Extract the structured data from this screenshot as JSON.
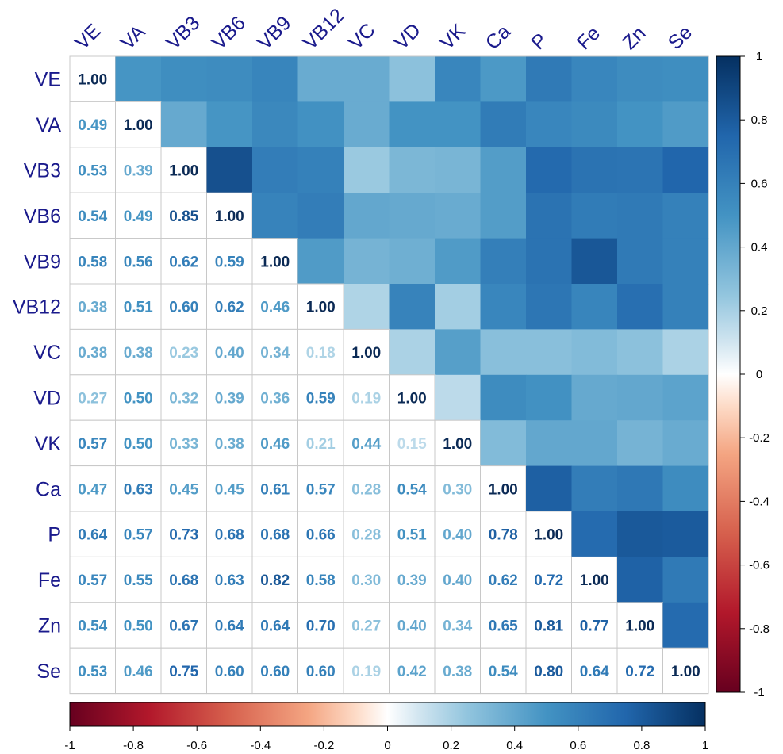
{
  "chart_data": {
    "type": "heatmap",
    "variables": [
      "VE",
      "VA",
      "VB3",
      "VB6",
      "VB9",
      "VB12",
      "VC",
      "VD",
      "VK",
      "Ca",
      "P",
      "Fe",
      "Zn",
      "Se"
    ],
    "matrix": [
      [
        1.0,
        0.49,
        0.53,
        0.54,
        0.58,
        0.38,
        0.38,
        0.27,
        0.57,
        0.47,
        0.64,
        0.57,
        0.54,
        0.53
      ],
      [
        0.49,
        1.0,
        0.39,
        0.49,
        0.56,
        0.51,
        0.38,
        0.5,
        0.5,
        0.63,
        0.57,
        0.55,
        0.5,
        0.46
      ],
      [
        0.53,
        0.39,
        1.0,
        0.85,
        0.62,
        0.6,
        0.23,
        0.32,
        0.33,
        0.45,
        0.73,
        0.68,
        0.67,
        0.75
      ],
      [
        0.54,
        0.49,
        0.85,
        1.0,
        0.59,
        0.62,
        0.4,
        0.39,
        0.38,
        0.45,
        0.68,
        0.63,
        0.64,
        0.6
      ],
      [
        0.58,
        0.56,
        0.62,
        0.59,
        1.0,
        0.46,
        0.34,
        0.36,
        0.46,
        0.61,
        0.68,
        0.82,
        0.64,
        0.6
      ],
      [
        0.38,
        0.51,
        0.6,
        0.62,
        0.46,
        1.0,
        0.18,
        0.59,
        0.21,
        0.57,
        0.66,
        0.58,
        0.7,
        0.6
      ],
      [
        0.38,
        0.38,
        0.23,
        0.4,
        0.34,
        0.18,
        1.0,
        0.19,
        0.44,
        0.28,
        0.28,
        0.3,
        0.27,
        0.19
      ],
      [
        0.27,
        0.5,
        0.32,
        0.39,
        0.36,
        0.59,
        0.19,
        1.0,
        0.15,
        0.54,
        0.51,
        0.39,
        0.4,
        0.42
      ],
      [
        0.57,
        0.5,
        0.33,
        0.38,
        0.46,
        0.21,
        0.44,
        0.15,
        1.0,
        0.3,
        0.4,
        0.4,
        0.34,
        0.38
      ],
      [
        0.47,
        0.63,
        0.45,
        0.45,
        0.61,
        0.57,
        0.28,
        0.54,
        0.3,
        1.0,
        0.78,
        0.62,
        0.65,
        0.54
      ],
      [
        0.64,
        0.57,
        0.73,
        0.68,
        0.68,
        0.66,
        0.28,
        0.51,
        0.4,
        0.78,
        1.0,
        0.72,
        0.81,
        0.8
      ],
      [
        0.57,
        0.55,
        0.68,
        0.63,
        0.82,
        0.58,
        0.3,
        0.39,
        0.4,
        0.62,
        0.72,
        1.0,
        0.77,
        0.64
      ],
      [
        0.54,
        0.5,
        0.67,
        0.64,
        0.64,
        0.7,
        0.27,
        0.4,
        0.34,
        0.65,
        0.81,
        0.77,
        1.0,
        0.72
      ],
      [
        0.53,
        0.46,
        0.75,
        0.6,
        0.6,
        0.6,
        0.19,
        0.42,
        0.38,
        0.54,
        0.8,
        0.64,
        0.72,
        1.0
      ]
    ],
    "lower_triangle": "number",
    "upper_triangle": "color",
    "diagonal": "number",
    "colorbar_range": [
      -1,
      1
    ],
    "colorbar_ticks": [
      "1",
      "0.8",
      "0.6",
      "0.4",
      "0.2",
      "0",
      "-0.2",
      "-0.4",
      "-0.6",
      "-0.8",
      "-1"
    ],
    "bottom_colorbar_ticks": [
      "-1",
      "-0.8",
      "-0.6",
      "-0.4",
      "-0.2",
      "0",
      "0.2",
      "0.4",
      "0.6",
      "0.8",
      "1"
    ],
    "colors": {
      "negative": "#67001F",
      "neutral": "#FFFFFF",
      "positive": "#053061",
      "label_color": "#1A1A8C",
      "grid_color": "#C8C8C8"
    }
  }
}
